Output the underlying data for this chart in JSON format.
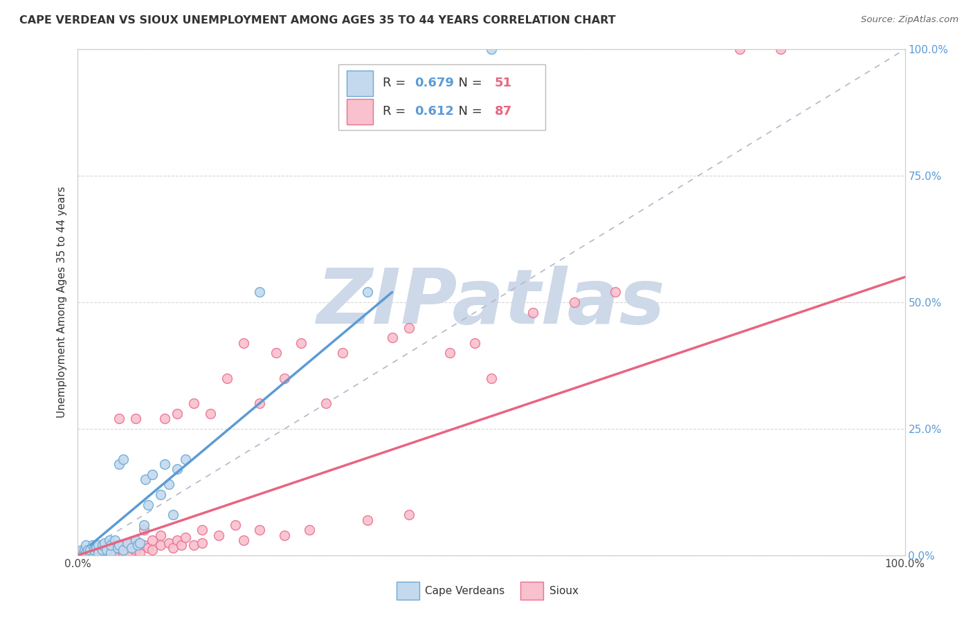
{
  "title": "CAPE VERDEAN VS SIOUX UNEMPLOYMENT AMONG AGES 35 TO 44 YEARS CORRELATION CHART",
  "source": "Source: ZipAtlas.com",
  "ylabel": "Unemployment Among Ages 35 to 44 years",
  "xlim": [
    0,
    1.0
  ],
  "ylim": [
    0,
    1.0
  ],
  "xtick_labels": [
    "0.0%",
    "",
    "",
    "",
    "100.0%"
  ],
  "xtick_values": [
    0.0,
    0.25,
    0.5,
    0.75,
    1.0
  ],
  "right_ytick_labels": [
    "0.0%",
    "25.0%",
    "50.0%",
    "75.0%",
    "100.0%"
  ],
  "right_ytick_values": [
    0.0,
    0.25,
    0.5,
    0.75,
    1.0
  ],
  "cape_verdean_fill": "#c5d9ee",
  "cape_verdean_edge": "#6aaad4",
  "sioux_fill": "#f9c0cd",
  "sioux_edge": "#e87090",
  "cape_verdean_line_color": "#5b9bd5",
  "sioux_line_color": "#e86480",
  "diagonal_color": "#b0b8c8",
  "R_cape_verdean": "0.679",
  "N_cape_verdean": "51",
  "R_sioux": "0.612",
  "N_sioux": "87",
  "r_color": "#5b9bd5",
  "n_color": "#e86480",
  "watermark_text": "ZIPatlas",
  "watermark_color": "#cdd8e8",
  "cape_verdean_scatter": [
    [
      0.0,
      0.0
    ],
    [
      0.002,
      0.0
    ],
    [
      0.003,
      0.005
    ],
    [
      0.004,
      0.0
    ],
    [
      0.005,
      0.01
    ],
    [
      0.006,
      0.0
    ],
    [
      0.007,
      0.005
    ],
    [
      0.008,
      0.01
    ],
    [
      0.009,
      0.0
    ],
    [
      0.01,
      0.005
    ],
    [
      0.01,
      0.02
    ],
    [
      0.012,
      0.01
    ],
    [
      0.015,
      0.0
    ],
    [
      0.015,
      0.01
    ],
    [
      0.018,
      0.02
    ],
    [
      0.02,
      0.0
    ],
    [
      0.02,
      0.01
    ],
    [
      0.022,
      0.015
    ],
    [
      0.025,
      0.005
    ],
    [
      0.025,
      0.02
    ],
    [
      0.03,
      0.01
    ],
    [
      0.03,
      0.02
    ],
    [
      0.032,
      0.025
    ],
    [
      0.035,
      0.01
    ],
    [
      0.038,
      0.03
    ],
    [
      0.04,
      0.005
    ],
    [
      0.04,
      0.02
    ],
    [
      0.045,
      0.03
    ],
    [
      0.048,
      0.015
    ],
    [
      0.05,
      0.02
    ],
    [
      0.05,
      0.18
    ],
    [
      0.055,
      0.01
    ],
    [
      0.055,
      0.19
    ],
    [
      0.06,
      0.025
    ],
    [
      0.065,
      0.015
    ],
    [
      0.07,
      0.03
    ],
    [
      0.072,
      0.02
    ],
    [
      0.075,
      0.025
    ],
    [
      0.08,
      0.06
    ],
    [
      0.082,
      0.15
    ],
    [
      0.085,
      0.1
    ],
    [
      0.09,
      0.16
    ],
    [
      0.1,
      0.12
    ],
    [
      0.105,
      0.18
    ],
    [
      0.11,
      0.14
    ],
    [
      0.115,
      0.08
    ],
    [
      0.12,
      0.17
    ],
    [
      0.13,
      0.19
    ],
    [
      0.22,
      0.52
    ],
    [
      0.35,
      0.52
    ],
    [
      0.5,
      1.0
    ]
  ],
  "sioux_scatter": [
    [
      0.0,
      0.0
    ],
    [
      0.002,
      0.0
    ],
    [
      0.003,
      0.0
    ],
    [
      0.004,
      0.005
    ],
    [
      0.005,
      0.0
    ],
    [
      0.006,
      0.0
    ],
    [
      0.007,
      0.0
    ],
    [
      0.008,
      0.005
    ],
    [
      0.01,
      0.0
    ],
    [
      0.01,
      0.005
    ],
    [
      0.012,
      0.0
    ],
    [
      0.013,
      0.01
    ],
    [
      0.015,
      0.005
    ],
    [
      0.015,
      0.0
    ],
    [
      0.018,
      0.0
    ],
    [
      0.02,
      0.0
    ],
    [
      0.02,
      0.01
    ],
    [
      0.022,
      0.0
    ],
    [
      0.025,
      0.005
    ],
    [
      0.025,
      0.01
    ],
    [
      0.03,
      0.0
    ],
    [
      0.03,
      0.01
    ],
    [
      0.032,
      0.02
    ],
    [
      0.035,
      0.0
    ],
    [
      0.038,
      0.005
    ],
    [
      0.04,
      0.01
    ],
    [
      0.04,
      0.025
    ],
    [
      0.042,
      0.01
    ],
    [
      0.045,
      0.005
    ],
    [
      0.048,
      0.015
    ],
    [
      0.05,
      0.0
    ],
    [
      0.05,
      0.02
    ],
    [
      0.05,
      0.27
    ],
    [
      0.052,
      0.01
    ],
    [
      0.055,
      0.005
    ],
    [
      0.06,
      0.005
    ],
    [
      0.06,
      0.02
    ],
    [
      0.065,
      0.015
    ],
    [
      0.07,
      0.01
    ],
    [
      0.07,
      0.27
    ],
    [
      0.072,
      0.025
    ],
    [
      0.075,
      0.005
    ],
    [
      0.08,
      0.02
    ],
    [
      0.08,
      0.05
    ],
    [
      0.085,
      0.015
    ],
    [
      0.09,
      0.01
    ],
    [
      0.09,
      0.03
    ],
    [
      0.1,
      0.02
    ],
    [
      0.1,
      0.04
    ],
    [
      0.105,
      0.27
    ],
    [
      0.11,
      0.025
    ],
    [
      0.115,
      0.015
    ],
    [
      0.12,
      0.03
    ],
    [
      0.12,
      0.28
    ],
    [
      0.125,
      0.02
    ],
    [
      0.13,
      0.035
    ],
    [
      0.14,
      0.02
    ],
    [
      0.14,
      0.3
    ],
    [
      0.15,
      0.025
    ],
    [
      0.15,
      0.05
    ],
    [
      0.16,
      0.28
    ],
    [
      0.17,
      0.04
    ],
    [
      0.18,
      0.35
    ],
    [
      0.19,
      0.06
    ],
    [
      0.2,
      0.03
    ],
    [
      0.2,
      0.42
    ],
    [
      0.22,
      0.05
    ],
    [
      0.22,
      0.3
    ],
    [
      0.24,
      0.4
    ],
    [
      0.25,
      0.04
    ],
    [
      0.25,
      0.35
    ],
    [
      0.27,
      0.42
    ],
    [
      0.28,
      0.05
    ],
    [
      0.3,
      0.3
    ],
    [
      0.32,
      0.4
    ],
    [
      0.35,
      0.07
    ],
    [
      0.38,
      0.43
    ],
    [
      0.4,
      0.08
    ],
    [
      0.4,
      0.45
    ],
    [
      0.45,
      0.4
    ],
    [
      0.48,
      0.42
    ],
    [
      0.5,
      0.35
    ],
    [
      0.55,
      0.48
    ],
    [
      0.6,
      0.5
    ],
    [
      0.65,
      0.52
    ],
    [
      0.8,
      1.0
    ],
    [
      0.85,
      1.0
    ]
  ]
}
